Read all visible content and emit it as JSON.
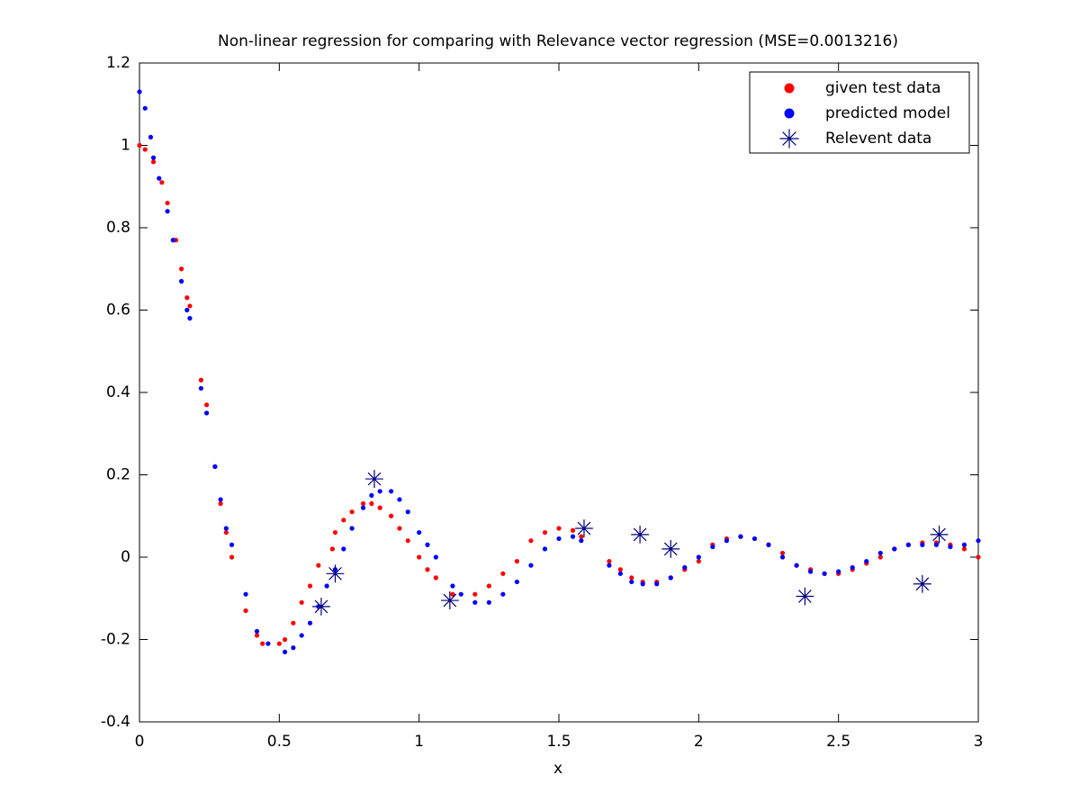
{
  "chart_data": {
    "type": "scatter",
    "title": "Non-linear regression for comparing with Relevance vector regression (MSE=0.0013216)",
    "x_label": "x",
    "xlim": [
      0,
      3
    ],
    "ylim": [
      -0.4,
      1.2
    ],
    "xticks": [
      0,
      0.5,
      1,
      1.5,
      2,
      2.5,
      3
    ],
    "yticks": [
      -0.4,
      -0.2,
      0,
      0.2,
      0.4,
      0.6,
      0.8,
      1,
      1.2
    ],
    "legend": "northeast",
    "series": [
      {
        "name": "given test data",
        "color": "#ff0000",
        "marker": "dot",
        "x": [
          0,
          0.02,
          0.05,
          0.08,
          0.1,
          0.13,
          0.15,
          0.17,
          0.18,
          0.22,
          0.24,
          0.27,
          0.29,
          0.31,
          0.33,
          0.38,
          0.42,
          0.44,
          0.5,
          0.52,
          0.55,
          0.58,
          0.61,
          0.64,
          0.69,
          0.7,
          0.73,
          0.76,
          0.8,
          0.83,
          0.86,
          0.9,
          0.93,
          0.96,
          1.0,
          1.03,
          1.06,
          1.12,
          1.2,
          1.25,
          1.3,
          1.35,
          1.4,
          1.45,
          1.5,
          1.55,
          1.58,
          1.68,
          1.72,
          1.76,
          1.8,
          1.85,
          1.9,
          1.95,
          2.0,
          2.05,
          2.1,
          2.15,
          2.2,
          2.25,
          2.3,
          2.35,
          2.4,
          2.45,
          2.5,
          2.55,
          2.6,
          2.65,
          2.7,
          2.75,
          2.8,
          2.85,
          2.9,
          2.95,
          3.0
        ],
        "values": [
          1.0,
          0.99,
          0.96,
          0.91,
          0.86,
          0.77,
          0.7,
          0.63,
          0.61,
          0.43,
          0.37,
          0.22,
          0.13,
          0.06,
          0.0,
          -0.13,
          -0.19,
          -0.21,
          -0.21,
          -0.2,
          -0.16,
          -0.11,
          -0.07,
          -0.02,
          0.02,
          0.06,
          0.09,
          0.11,
          0.13,
          0.13,
          0.12,
          0.1,
          0.07,
          0.04,
          0.0,
          -0.03,
          -0.05,
          -0.09,
          -0.09,
          -0.07,
          -0.04,
          -0.01,
          0.04,
          0.06,
          0.07,
          0.065,
          0.05,
          -0.01,
          -0.03,
          -0.05,
          -0.06,
          -0.06,
          -0.05,
          -0.03,
          -0.01,
          0.03,
          0.045,
          0.05,
          0.045,
          0.03,
          0.01,
          -0.02,
          -0.03,
          -0.04,
          -0.04,
          -0.03,
          -0.015,
          0.0,
          0.02,
          0.03,
          0.035,
          0.035,
          0.03,
          0.02,
          0.0
        ]
      },
      {
        "name": "predicted model",
        "color": "#0000ff",
        "marker": "dot",
        "x": [
          0,
          0.02,
          0.04,
          0.05,
          0.07,
          0.1,
          0.12,
          0.15,
          0.17,
          0.18,
          0.22,
          0.24,
          0.27,
          0.29,
          0.31,
          0.33,
          0.38,
          0.42,
          0.46,
          0.52,
          0.55,
          0.58,
          0.61,
          0.64,
          0.67,
          0.7,
          0.73,
          0.76,
          0.8,
          0.83,
          0.86,
          0.9,
          0.93,
          0.96,
          1.0,
          1.03,
          1.06,
          1.12,
          1.15,
          1.2,
          1.25,
          1.3,
          1.35,
          1.4,
          1.45,
          1.5,
          1.55,
          1.58,
          1.68,
          1.72,
          1.76,
          1.8,
          1.85,
          1.9,
          1.95,
          2.0,
          2.05,
          2.1,
          2.15,
          2.2,
          2.25,
          2.3,
          2.35,
          2.4,
          2.45,
          2.5,
          2.55,
          2.6,
          2.65,
          2.7,
          2.75,
          2.8,
          2.85,
          2.9,
          2.95,
          3.0
        ],
        "values": [
          1.13,
          1.09,
          1.02,
          0.97,
          0.92,
          0.84,
          0.77,
          0.67,
          0.6,
          0.58,
          0.41,
          0.35,
          0.22,
          0.14,
          0.07,
          0.03,
          -0.09,
          -0.18,
          -0.21,
          -0.23,
          -0.22,
          -0.19,
          -0.16,
          -0.12,
          -0.07,
          -0.03,
          0.02,
          0.07,
          0.12,
          0.15,
          0.16,
          0.16,
          0.14,
          0.11,
          0.06,
          0.03,
          0.0,
          -0.07,
          -0.09,
          -0.11,
          -0.11,
          -0.09,
          -0.06,
          -0.02,
          0.02,
          0.045,
          0.05,
          0.04,
          -0.02,
          -0.04,
          -0.06,
          -0.065,
          -0.065,
          -0.05,
          -0.025,
          0.0,
          0.025,
          0.04,
          0.05,
          0.045,
          0.03,
          0.0,
          -0.02,
          -0.035,
          -0.04,
          -0.035,
          -0.025,
          -0.01,
          0.01,
          0.02,
          0.03,
          0.03,
          0.03,
          0.025,
          0.03,
          0.04
        ]
      },
      {
        "name": "Relevent data",
        "color": "#000080",
        "marker": "star",
        "x": [
          0.65,
          0.7,
          0.84,
          1.11,
          1.59,
          1.79,
          1.9,
          2.38,
          2.8,
          2.86
        ],
        "values": [
          -0.12,
          -0.04,
          0.19,
          -0.105,
          0.07,
          0.055,
          0.02,
          -0.095,
          -0.065,
          0.055
        ]
      }
    ]
  }
}
